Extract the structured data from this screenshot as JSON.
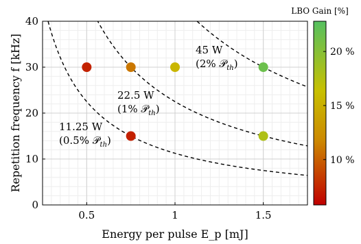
{
  "chart_data": {
    "type": "scatter",
    "xlabel": "Energy per pulse E_p [mJ]",
    "ylabel": "Repetition frequency f [kHz]",
    "xlim": [
      0.25,
      1.75
    ],
    "ylim": [
      0,
      40
    ],
    "x_ticks": [
      0.5,
      1,
      1.5
    ],
    "x_tick_labels": [
      "0.5",
      "1",
      "1.5"
    ],
    "y_ticks": [
      0,
      10,
      20,
      30,
      40
    ],
    "y_tick_labels": [
      "0",
      "10",
      "20",
      "30",
      "40"
    ],
    "grid": true,
    "minor_grid": true,
    "points": [
      {
        "x": 0.5,
        "y": 30,
        "gain": 7.3
      },
      {
        "x": 0.75,
        "y": 30,
        "gain": 11.0
      },
      {
        "x": 0.75,
        "y": 15,
        "gain": 7.2
      },
      {
        "x": 1.0,
        "y": 30,
        "gain": 15.5
      },
      {
        "x": 1.5,
        "y": 30,
        "gain": 21.5
      },
      {
        "x": 1.5,
        "y": 15,
        "gain": 17.8
      }
    ],
    "power_curves": [
      {
        "power_W": 11.25,
        "label_line1": "11.25 W",
        "label_line2": "(0.5% 𝒫",
        "label_sub": "th",
        "label_close": ")"
      },
      {
        "power_W": 22.5,
        "label_line1": "22.5 W",
        "label_line2": "(1% 𝒫",
        "label_sub": "th",
        "label_close": ")"
      },
      {
        "power_W": 45,
        "label_line1": "45 W",
        "label_line2": "(2% 𝒫",
        "label_sub": "th",
        "label_close": ")"
      }
    ],
    "colorbar": {
      "title": "LBO Gain [%]",
      "range": [
        5.8,
        22.8
      ],
      "ticks": [
        10,
        15,
        20
      ],
      "tick_labels": [
        "10 %",
        "15 %",
        "20 %"
      ],
      "colors": [
        "#c00000",
        "#cc8800",
        "#c8c000",
        "#55c060"
      ]
    }
  }
}
